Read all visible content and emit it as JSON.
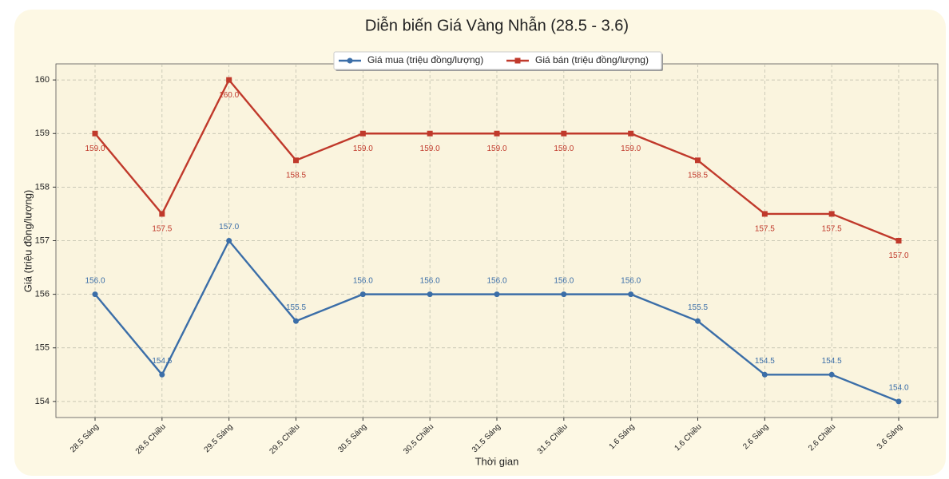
{
  "chart_data": {
    "type": "line",
    "title": "Diễn biến Giá Vàng Nhẫn (28.5 - 3.6)",
    "x_label": "Thời gian",
    "y_label": "Giá (triệu đồng/lượng)",
    "categories": [
      "28.5 Sáng",
      "28.5 Chiều",
      "29.5 Sáng",
      "29.5 Chiều",
      "30.5 Sáng",
      "30.5 Chiều",
      "31.5 Sáng",
      "31.5 Chiều",
      "1.6 Sáng",
      "1.6 Chiều",
      "2.6 Sáng",
      "2.6 Chiều",
      "3.6 Sáng"
    ],
    "series": [
      {
        "name": "Giá mua (triệu đồng/lượng)",
        "color": "#3b6ea8",
        "marker": "circle",
        "values": [
          156,
          154.5,
          157,
          155.5,
          156,
          156,
          156,
          156,
          156,
          155.5,
          154.5,
          154.5,
          154
        ],
        "value_labels": [
          "156.0",
          "154.5",
          "157.0",
          "155.5",
          "156.0",
          "156.0",
          "156.0",
          "156.0",
          "156.0",
          "155.5",
          "154.5",
          "154.5",
          "154.0"
        ]
      },
      {
        "name": "Giá bán (triệu đồng/lượng)",
        "color": "#c0392b",
        "marker": "square",
        "values": [
          159,
          157.5,
          160,
          158.5,
          159,
          159,
          159,
          159,
          159,
          158.5,
          157.5,
          157.5,
          157
        ],
        "value_labels": [
          "159.0",
          "157.5",
          "160.0",
          "158.5",
          "159.0",
          "159.0",
          "159.0",
          "159.0",
          "159.0",
          "158.5",
          "157.5",
          "157.5",
          "157.0"
        ]
      }
    ],
    "ylim": [
      153.7,
      160.3
    ],
    "yticks": [
      154,
      155,
      156,
      157,
      158,
      159,
      160
    ],
    "grid": true,
    "legend": "upper center"
  }
}
